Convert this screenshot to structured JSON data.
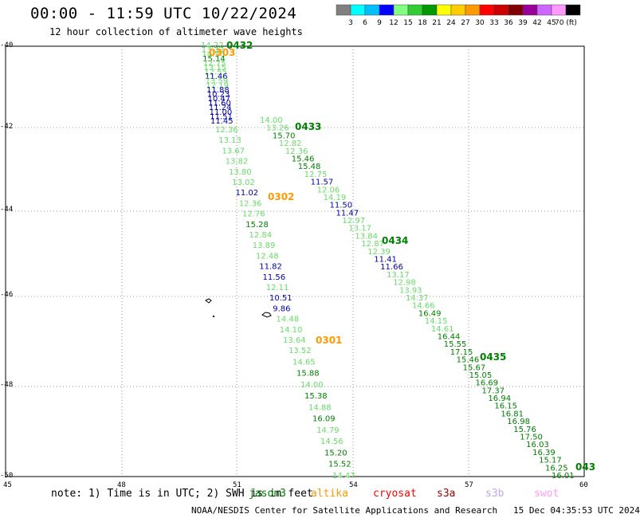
{
  "header": {
    "title": "00:00 - 11:59 UTC 10/22/2024",
    "subtitle": "12 hour collection of altimeter wave heights"
  },
  "colorbar": {
    "labels": [
      "3",
      "6",
      "9",
      "12",
      "15",
      "18",
      "21",
      "24",
      "27",
      "30",
      "33",
      "36",
      "39",
      "42",
      "45",
      "70 (ft)"
    ],
    "colors": [
      "#808080",
      "#00ffff",
      "#00bfff",
      "#0000ff",
      "#80ff80",
      "#33cc33",
      "#009900",
      "#ffff00",
      "#ffcc00",
      "#ff9900",
      "#ff0000",
      "#cc0000",
      "#800000",
      "#990099",
      "#cc66ff",
      "#ff99ff",
      "#000000"
    ]
  },
  "axes": {
    "lat_labels": [
      "-40",
      "-42",
      "-44",
      "-46",
      "-48",
      "-50"
    ],
    "lon_labels": [
      "45",
      "48",
      "51",
      "54",
      "57",
      "60"
    ]
  },
  "tracks": [
    {
      "time": "0432",
      "color": "#008000",
      "values": [
        {
          "v": "14.22",
          "c": "#66dd66"
        },
        {
          "v": "13.32",
          "c": "#66dd66"
        },
        {
          "v": "14.56",
          "c": "#66dd66"
        },
        {
          "v": "15.14",
          "c": "#008000"
        },
        {
          "v": "12.75",
          "c": "#66dd66"
        },
        {
          "v": "13.15",
          "c": "#66dd66"
        },
        {
          "v": "12.55",
          "c": "#66dd66"
        },
        {
          "v": "11.46",
          "c": "#0000aa"
        },
        {
          "v": "13.59",
          "c": "#66dd66"
        },
        {
          "v": "12.19",
          "c": "#66dd66"
        },
        {
          "v": "11.88",
          "c": "#0000aa"
        },
        {
          "v": "10.23",
          "c": "#0000aa"
        },
        {
          "v": "10.47",
          "c": "#0000aa"
        },
        {
          "v": "11.60",
          "c": "#0000aa"
        },
        {
          "v": "11.24",
          "c": "#0000aa"
        },
        {
          "v": "11.00",
          "c": "#0000aa"
        },
        {
          "v": "11.51",
          "c": "#0000aa"
        },
        {
          "v": "11.45",
          "c": "#0000aa"
        }
      ]
    },
    {
      "time": "0303",
      "color": "#ff9900"
    },
    {
      "time": "0433",
      "color": "#008000",
      "values": [
        {
          "v": "14.00",
          "c": "#66dd66"
        },
        {
          "v": "13.26",
          "c": "#66dd66"
        },
        {
          "v": "15.70",
          "c": "#008000"
        },
        {
          "v": "12.82",
          "c": "#66dd66"
        },
        {
          "v": "12.36",
          "c": "#66dd66"
        },
        {
          "v": "15.46",
          "c": "#008000"
        },
        {
          "v": "15.48",
          "c": "#008000"
        },
        {
          "v": "12.75",
          "c": "#66dd66"
        },
        {
          "v": "11.57",
          "c": "#0000aa"
        },
        {
          "v": "12.06",
          "c": "#66dd66"
        },
        {
          "v": "14.19",
          "c": "#66dd66"
        },
        {
          "v": "11.50",
          "c": "#0000aa"
        },
        {
          "v": "11.47",
          "c": "#0000aa"
        },
        {
          "v": "12.97",
          "c": "#66dd66"
        },
        {
          "v": "13.17",
          "c": "#66dd66"
        },
        {
          "v": "13.84",
          "c": "#66dd66"
        },
        {
          "v": "12.87",
          "c": "#66dd66"
        },
        {
          "v": "12.39",
          "c": "#66dd66"
        },
        {
          "v": "11.41",
          "c": "#0000aa"
        },
        {
          "v": "11.66",
          "c": "#0000aa"
        },
        {
          "v": "13.17",
          "c": "#66dd66"
        },
        {
          "v": "12.98",
          "c": "#66dd66"
        },
        {
          "v": "13.93",
          "c": "#66dd66"
        },
        {
          "v": "14.37",
          "c": "#66dd66"
        },
        {
          "v": "14.66",
          "c": "#66dd66"
        },
        {
          "v": "16.49",
          "c": "#008000"
        },
        {
          "v": "14.15",
          "c": "#66dd66"
        },
        {
          "v": "14.61",
          "c": "#66dd66"
        },
        {
          "v": "16.44",
          "c": "#008000"
        },
        {
          "v": "15.55",
          "c": "#008000"
        },
        {
          "v": "17.15",
          "c": "#008000"
        },
        {
          "v": "15.46",
          "c": "#008000"
        },
        {
          "v": "15.67",
          "c": "#008000"
        },
        {
          "v": "15.05",
          "c": "#008000"
        },
        {
          "v": "16.69",
          "c": "#008000"
        },
        {
          "v": "17.37",
          "c": "#008000"
        },
        {
          "v": "16.94",
          "c": "#008000"
        },
        {
          "v": "16.15",
          "c": "#008000"
        },
        {
          "v": "16.81",
          "c": "#008000"
        },
        {
          "v": "16.98",
          "c": "#008000"
        },
        {
          "v": "15.76",
          "c": "#008000"
        },
        {
          "v": "17.50",
          "c": "#008000"
        },
        {
          "v": "16.03",
          "c": "#008000"
        },
        {
          "v": "16.39",
          "c": "#008000"
        },
        {
          "v": "15.17",
          "c": "#008000"
        },
        {
          "v": "16.25",
          "c": "#008000"
        },
        {
          "v": "16.01",
          "c": "#008000"
        }
      ]
    },
    {
      "time": "0434",
      "color": "#008000"
    },
    {
      "time": "0435",
      "color": "#008000"
    },
    {
      "time": "043",
      "color": "#008000"
    },
    {
      "time": "0302",
      "color": "#ff9900",
      "values": [
        {
          "v": "12.36",
          "c": "#66dd66"
        },
        {
          "v": "13.13",
          "c": "#66dd66"
        },
        {
          "v": "13.67",
          "c": "#66dd66"
        },
        {
          "v": "13.82",
          "c": "#66dd66"
        },
        {
          "v": "13.80",
          "c": "#66dd66"
        },
        {
          "v": "13.02",
          "c": "#66dd66"
        },
        {
          "v": "11.02",
          "c": "#0000aa"
        },
        {
          "v": "12.36",
          "c": "#66dd66"
        },
        {
          "v": "12.76",
          "c": "#66dd66"
        },
        {
          "v": "15.28",
          "c": "#008000"
        },
        {
          "v": "12.84",
          "c": "#66dd66"
        },
        {
          "v": "13.89",
          "c": "#66dd66"
        },
        {
          "v": "12.48",
          "c": "#66dd66"
        },
        {
          "v": "11.82",
          "c": "#0000aa"
        },
        {
          "v": "11.56",
          "c": "#0000aa"
        },
        {
          "v": "12.11",
          "c": "#66dd66"
        },
        {
          "v": "10.51",
          "c": "#0000aa"
        },
        {
          "v": "9.86",
          "c": "#0000aa"
        },
        {
          "v": "14.48",
          "c": "#66dd66"
        },
        {
          "v": "14.10",
          "c": "#66dd66"
        },
        {
          "v": "13.64",
          "c": "#66dd66"
        }
      ]
    },
    {
      "time": "0301",
      "color": "#ff9900",
      "values": [
        {
          "v": "13.52",
          "c": "#66dd66"
        },
        {
          "v": "14.65",
          "c": "#66dd66"
        },
        {
          "v": "15.88",
          "c": "#008000"
        },
        {
          "v": "14.00",
          "c": "#66dd66"
        },
        {
          "v": "15.38",
          "c": "#008000"
        },
        {
          "v": "14.88",
          "c": "#66dd66"
        },
        {
          "v": "16.09",
          "c": "#008000"
        },
        {
          "v": "14.79",
          "c": "#66dd66"
        },
        {
          "v": "14.56",
          "c": "#66dd66"
        },
        {
          "v": "15.20",
          "c": "#008000"
        },
        {
          "v": "15.52",
          "c": "#008000"
        },
        {
          "v": "14.47",
          "c": "#66dd66"
        }
      ]
    }
  ],
  "footer": {
    "note": "note: 1) Time is in UTC; 2) SWH is in feet",
    "legend": [
      {
        "label": "jason3",
        "color": "#008000"
      },
      {
        "label": "altika",
        "color": "#ff9900"
      },
      {
        "label": "cryosat",
        "color": "#ff0000"
      },
      {
        "label": "s3a",
        "color": "#990000"
      },
      {
        "label": "s3b",
        "color": "#bbaaee"
      },
      {
        "label": "swot",
        "color": "#ff99ff"
      }
    ],
    "credit": "NOAA/NESDIS Center for Satellite Applications and Research   15 Dec 04:35:53 UTC 2024"
  }
}
